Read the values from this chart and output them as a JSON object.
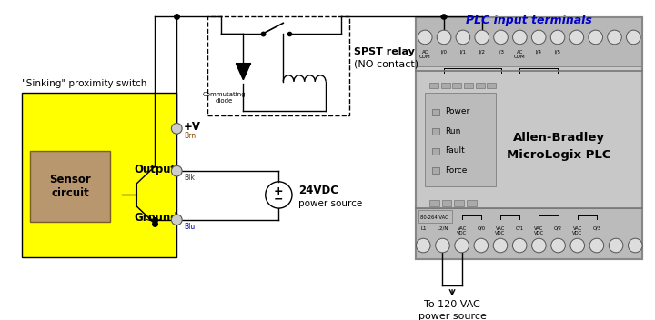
{
  "bg_color": "#ffffff",
  "plc_label": "PLC input terminals",
  "plc_label_color": "#0000cc",
  "sensor_box_color": "#ffff00",
  "sensor_inner_color": "#b8966e",
  "proximity_label": "\"Sinking\" proximity switch",
  "spst_label_1": "SPST relay",
  "spst_label_2": "(NO contact)",
  "power_label_1": "24VDC",
  "power_label_2": "power source",
  "pv_label": "+V",
  "output_label": "Output",
  "ground_label": "Ground",
  "brown_label": "Brn",
  "black_label": "Blk",
  "blue_label": "Blu",
  "plc_title_1": "Allen-Bradley",
  "plc_title_2": "MicroLogix PLC",
  "indicator_labels": [
    "Power",
    "Run",
    "Fault",
    "Force"
  ],
  "bottom_label_1": "To 120 VAC",
  "bottom_label_2": "power source",
  "plc_box_color": "#c8c8c8",
  "plc_border_color": "#888888",
  "commutating_label": "Commutating\ndiode"
}
